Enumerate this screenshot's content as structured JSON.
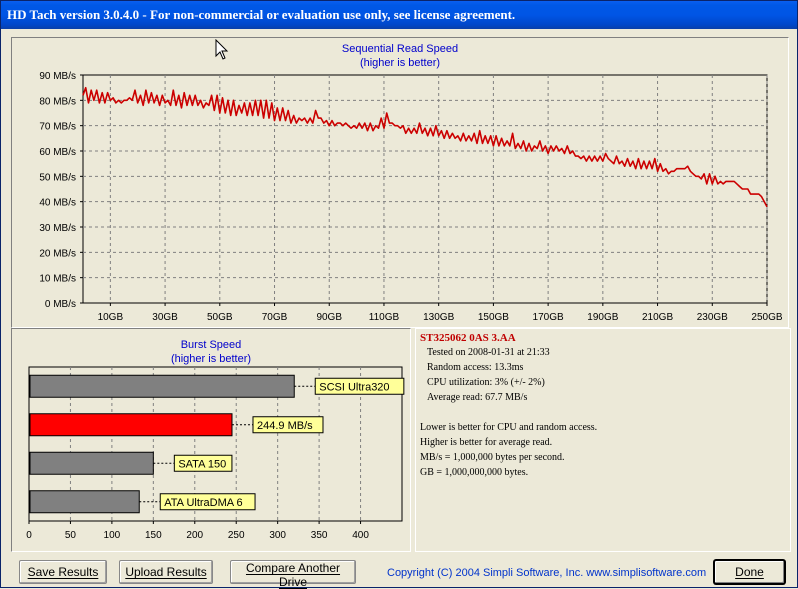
{
  "window": {
    "title": "HD Tach version 3.0.4.0  - For non-commercial or evaluation use only, see license agreement."
  },
  "colors": {
    "read_line": "#cc0000",
    "grid": "#808080",
    "bar_gray": "#808080",
    "bar_highlight": "#ff0000",
    "label_box": "#ffff99",
    "axis_text": "#000000",
    "chart_title": "#0000cc"
  },
  "chart_data": [
    {
      "type": "line",
      "title": "Sequential Read Speed",
      "subtitle": "(higher is better)",
      "xlabel": "",
      "ylabel": "",
      "x_ticks": [
        "10GB",
        "30GB",
        "50GB",
        "70GB",
        "90GB",
        "110GB",
        "130GB",
        "150GB",
        "170GB",
        "190GB",
        "210GB",
        "230GB",
        "250GB"
      ],
      "y_ticks": [
        "0 MB/s",
        "10 MB/s",
        "20 MB/s",
        "30 MB/s",
        "40 MB/s",
        "50 MB/s",
        "60 MB/s",
        "70 MB/s",
        "80 MB/s",
        "90 MB/s"
      ],
      "xlim": [
        0,
        250
      ],
      "ylim": [
        0,
        90
      ],
      "grid": true,
      "series": [
        {
          "values": [
            [
              0,
              82
            ],
            [
              1,
              85
            ],
            [
              2,
              79
            ],
            [
              3,
              84
            ],
            [
              4,
              80
            ],
            [
              5,
              84
            ],
            [
              6,
              79
            ],
            [
              7,
              83
            ],
            [
              8,
              79
            ],
            [
              9,
              83
            ],
            [
              10,
              80
            ],
            [
              11,
              81
            ],
            [
              12,
              79
            ],
            [
              13,
              80
            ],
            [
              14,
              79
            ],
            [
              15,
              80
            ],
            [
              16,
              80
            ],
            [
              17,
              81
            ],
            [
              18,
              80
            ],
            [
              19,
              84
            ],
            [
              20,
              79
            ],
            [
              21,
              82
            ],
            [
              22,
              78
            ],
            [
              23,
              84
            ],
            [
              24,
              79
            ],
            [
              25,
              83
            ],
            [
              26,
              79
            ],
            [
              27,
              82
            ],
            [
              28,
              78
            ],
            [
              29,
              82
            ],
            [
              30,
              79
            ],
            [
              31,
              80
            ],
            [
              32,
              78
            ],
            [
              33,
              84
            ],
            [
              34,
              78
            ],
            [
              35,
              82
            ],
            [
              36,
              77
            ],
            [
              37,
              83
            ],
            [
              38,
              78
            ],
            [
              39,
              82
            ],
            [
              40,
              78
            ],
            [
              41,
              82
            ],
            [
              42,
              78
            ],
            [
              43,
              80
            ],
            [
              44,
              77
            ],
            [
              45,
              79
            ],
            [
              46,
              78
            ],
            [
              47,
              82
            ],
            [
              48,
              76
            ],
            [
              49,
              82
            ],
            [
              50,
              75
            ],
            [
              51,
              81
            ],
            [
              52,
              75
            ],
            [
              53,
              80
            ],
            [
              54,
              74
            ],
            [
              55,
              80
            ],
            [
              56,
              74
            ],
            [
              57,
              78
            ],
            [
              58,
              75
            ],
            [
              59,
              79
            ],
            [
              60,
              74
            ],
            [
              61,
              79
            ],
            [
              62,
              74
            ],
            [
              63,
              80
            ],
            [
              64,
              74
            ],
            [
              65,
              80
            ],
            [
              66,
              73
            ],
            [
              67,
              80
            ],
            [
              68,
              73
            ],
            [
              69,
              79
            ],
            [
              70,
              72
            ],
            [
              71,
              77
            ],
            [
              72,
              72
            ],
            [
              73,
              77
            ],
            [
              74,
              72
            ],
            [
              75,
              76
            ],
            [
              76,
              71
            ],
            [
              77,
              74
            ],
            [
              78,
              71
            ],
            [
              79,
              73
            ],
            [
              80,
              72
            ],
            [
              81,
              73
            ],
            [
              82,
              71
            ],
            [
              83,
              73
            ],
            [
              84,
              71
            ],
            [
              85,
              76
            ],
            [
              86,
              73
            ],
            [
              87,
              73
            ],
            [
              88,
              71
            ],
            [
              89,
              72
            ],
            [
              90,
              70
            ],
            [
              91,
              72
            ],
            [
              92,
              70
            ],
            [
              93,
              71
            ],
            [
              94,
              71
            ],
            [
              95,
              70
            ],
            [
              96,
              71
            ],
            [
              97,
              70
            ],
            [
              98,
              69
            ],
            [
              99,
              70
            ],
            [
              100,
              69
            ],
            [
              101,
              71
            ],
            [
              102,
              69
            ],
            [
              103,
              71
            ],
            [
              104,
              68
            ],
            [
              105,
              71
            ],
            [
              106,
              68
            ],
            [
              107,
              70
            ],
            [
              108,
              69
            ],
            [
              109,
              73
            ],
            [
              110,
              69
            ],
            [
              111,
              75
            ],
            [
              112,
              71
            ],
            [
              113,
              71
            ],
            [
              114,
              70
            ],
            [
              115,
              70
            ],
            [
              116,
              69
            ],
            [
              117,
              70
            ],
            [
              118,
              67
            ],
            [
              119,
              69
            ],
            [
              120,
              67
            ],
            [
              121,
              69
            ],
            [
              122,
              67
            ],
            [
              123,
              71
            ],
            [
              124,
              67
            ],
            [
              125,
              69
            ],
            [
              126,
              66
            ],
            [
              127,
              69
            ],
            [
              128,
              66
            ],
            [
              129,
              70
            ],
            [
              130,
              66
            ],
            [
              131,
              68
            ],
            [
              132,
              65
            ],
            [
              133,
              68
            ],
            [
              134,
              65
            ],
            [
              135,
              67
            ],
            [
              136,
              65
            ],
            [
              137,
              66
            ],
            [
              138,
              64
            ],
            [
              139,
              67
            ],
            [
              140,
              64
            ],
            [
              141,
              66
            ],
            [
              142,
              64
            ],
            [
              143,
              67
            ],
            [
              144,
              63
            ],
            [
              145,
              68
            ],
            [
              146,
              63
            ],
            [
              147,
              66
            ],
            [
              148,
              63
            ],
            [
              149,
              66
            ],
            [
              150,
              62
            ],
            [
              151,
              66
            ],
            [
              152,
              62
            ],
            [
              153,
              65
            ],
            [
              154,
              62
            ],
            [
              155,
              64
            ],
            [
              156,
              62
            ],
            [
              157,
              67
            ],
            [
              158,
              61
            ],
            [
              159,
              63
            ],
            [
              160,
              61
            ],
            [
              161,
              64
            ],
            [
              162,
              60
            ],
            [
              163,
              63
            ],
            [
              164,
              60
            ],
            [
              165,
              62
            ],
            [
              166,
              61
            ],
            [
              167,
              64
            ],
            [
              168,
              60
            ],
            [
              169,
              62
            ],
            [
              170,
              59
            ],
            [
              171,
              62
            ],
            [
              172,
              60
            ],
            [
              173,
              62
            ],
            [
              174,
              60
            ],
            [
              175,
              61
            ],
            [
              176,
              59
            ],
            [
              177,
              62
            ],
            [
              178,
              59
            ],
            [
              179,
              60
            ],
            [
              180,
              58
            ],
            [
              181,
              58
            ],
            [
              182,
              57
            ],
            [
              183,
              58
            ],
            [
              184,
              56
            ],
            [
              185,
              58
            ],
            [
              186,
              56
            ],
            [
              187,
              58
            ],
            [
              188,
              56
            ],
            [
              189,
              58
            ],
            [
              190,
              56
            ],
            [
              191,
              59
            ],
            [
              192,
              57
            ],
            [
              193,
              56
            ],
            [
              194,
              55
            ],
            [
              195,
              58
            ],
            [
              196,
              55
            ],
            [
              197,
              56
            ],
            [
              198,
              54
            ],
            [
              199,
              57
            ],
            [
              200,
              54
            ],
            [
              201,
              56
            ],
            [
              202,
              53
            ],
            [
              203,
              57
            ],
            [
              204,
              53
            ],
            [
              205,
              56
            ],
            [
              206,
              53
            ],
            [
              207,
              56
            ],
            [
              208,
              53
            ],
            [
              209,
              57
            ],
            [
              210,
              52
            ],
            [
              211,
              55
            ],
            [
              212,
              52
            ],
            [
              213,
              53
            ],
            [
              214,
              51
            ],
            [
              215,
              52
            ],
            [
              216,
              52
            ],
            [
              217,
              53
            ],
            [
              218,
              53
            ],
            [
              219,
              53
            ],
            [
              220,
              53
            ],
            [
              221,
              54
            ],
            [
              222,
              52
            ],
            [
              223,
              51
            ],
            [
              224,
              50
            ],
            [
              225,
              50
            ],
            [
              226,
              49
            ],
            [
              227,
              51
            ],
            [
              228,
              47
            ],
            [
              229,
              51
            ],
            [
              230,
              47
            ],
            [
              231,
              50
            ],
            [
              232,
              47
            ],
            [
              233,
              48
            ],
            [
              234,
              47
            ],
            [
              235,
              48
            ],
            [
              236,
              48
            ],
            [
              237,
              48
            ],
            [
              238,
              48
            ],
            [
              239,
              47
            ],
            [
              240,
              46
            ],
            [
              241,
              45
            ],
            [
              242,
              45
            ],
            [
              243,
              45
            ],
            [
              244,
              43
            ],
            [
              245,
              43
            ],
            [
              246,
              43
            ],
            [
              247,
              43
            ],
            [
              248,
              42
            ],
            [
              249,
              40
            ],
            [
              250,
              38
            ]
          ]
        }
      ]
    },
    {
      "type": "bar",
      "title": "Burst Speed",
      "subtitle": "(higher is better)",
      "orientation": "horizontal",
      "xlim": [
        0,
        450
      ],
      "grid": true,
      "x_ticks": [
        "0",
        "50",
        "100",
        "150",
        "200",
        "250",
        "300",
        "350",
        "400"
      ],
      "categories": [
        "SCSI Ultra320",
        "244.9 MB/s",
        "SATA 150",
        "ATA UltraDMA 6"
      ],
      "values": [
        320,
        244.9,
        150,
        133
      ],
      "highlight_index": 1
    }
  ],
  "info": {
    "drive": "ST325062 0AS 3.AA",
    "tested": "Tested on 2008-01-31 at 21:33",
    "random": "Random access: 13.3ms",
    "cpu": "CPU utilization: 3% (+/- 2%)",
    "avg": "Average read: 67.7 MB/s",
    "note1": "Lower is better for CPU and random access.",
    "note2": "Higher is better for average read.",
    "note3": "MB/s = 1,000,000 bytes per second.",
    "note4": "GB = 1,000,000,000 bytes."
  },
  "buttons": {
    "save": "Save Results",
    "upload": "Upload Results",
    "compare": "Compare Another Drive",
    "done": "Done"
  },
  "footer": {
    "copyright": "Copyright (C) 2004 Simpli Software, Inc. www.simplisoftware.com"
  },
  "cursor": {
    "icon": "arrow-cursor-icon"
  }
}
